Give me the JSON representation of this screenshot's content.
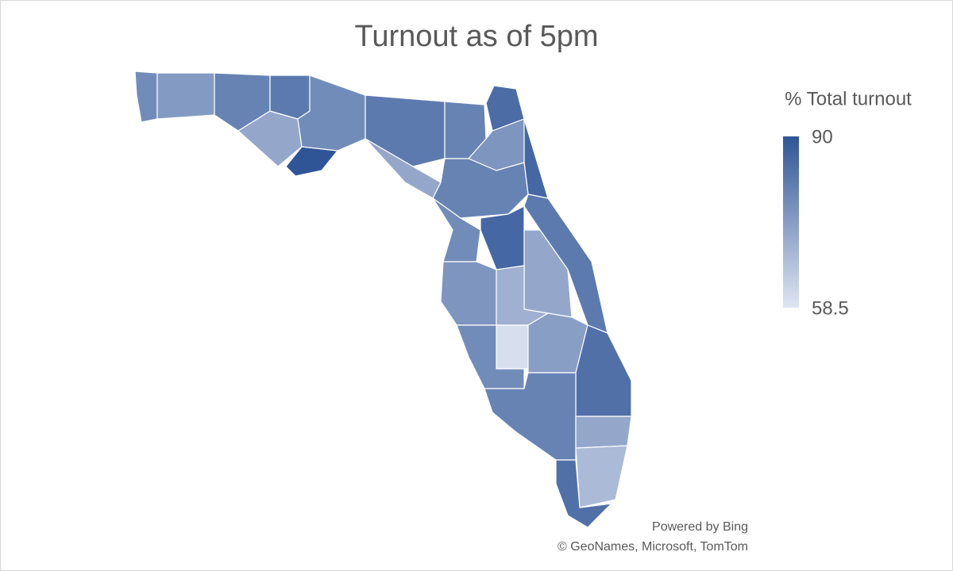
{
  "chart_data": {
    "type": "choropleth",
    "title": "Turnout as of 5pm",
    "legend_title": "% Total turnout",
    "scale_min": 58.5,
    "scale_max": 90,
    "color_min": "#dfe5f2",
    "color_max": "#2f5597",
    "values": [
      78,
      75,
      80,
      72,
      82,
      90,
      78,
      82,
      72,
      80,
      85,
      76,
      86,
      80,
      78,
      86,
      82,
      72,
      76,
      70,
      60,
      78,
      74,
      84,
      80,
      72,
      68,
      84
    ],
    "attribution": [
      "Powered by Bing",
      "© GeoNames, Microsoft, TomTom"
    ]
  }
}
